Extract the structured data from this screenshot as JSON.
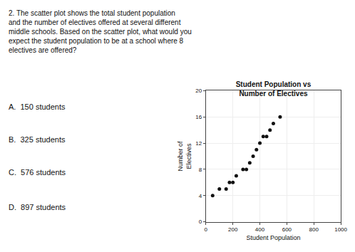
{
  "chart_data": {
    "type": "scatter",
    "title": "Student Population vs\nNumber of Electives",
    "xlabel": "Student Population",
    "ylabel": "Number of\nElectives",
    "x": [
      50,
      100,
      150,
      175,
      200,
      225,
      275,
      300,
      325,
      350,
      375,
      400,
      425,
      450,
      475,
      500,
      550
    ],
    "values": [
      4,
      5,
      5,
      6,
      6,
      7,
      8,
      8,
      9,
      10,
      11,
      12,
      13,
      13,
      14,
      15,
      16
    ],
    "color": "#111111",
    "xlim": [
      0,
      1000
    ],
    "ylim": [
      0,
      20
    ],
    "xticks": [
      0,
      200,
      400,
      600,
      800,
      1000
    ],
    "yticks": [
      0,
      4,
      8,
      12,
      16,
      20
    ],
    "grid": true,
    "annotations": [
      "2. The scatter plot shows the total student population\nand the number of electives offered at several different\nmiddle schools. Based on the scatter plot, what would you\nexpect the student population to be at a school where 8\nelectives are offered?",
      "A.  150 students",
      "B.  325 students",
      "C.  576 students",
      "D.  897 students"
    ]
  }
}
